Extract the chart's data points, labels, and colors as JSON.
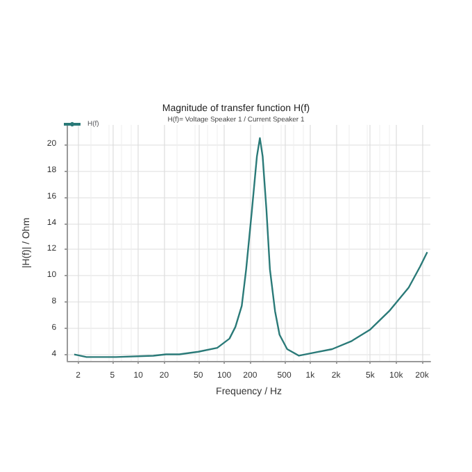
{
  "chart_data": {
    "type": "line",
    "title": "Magnitude of transfer function H(f)",
    "subtitle": "H(f)= Voltage Speaker 1 / Current Speaker 1",
    "xlabel": "Frequency / Hz",
    "ylabel": "|H(f)| / Ohm",
    "x": [
      1.8,
      2.5,
      5.5,
      15,
      21,
      30,
      50,
      83,
      115,
      135,
      160,
      180,
      210,
      240,
      260,
      280,
      310,
      340,
      390,
      440,
      540,
      740,
      1050,
      1800,
      3000,
      5000,
      8300,
      14000,
      19000,
      23000
    ],
    "series": [
      {
        "name": "H(f)",
        "color": "#2a7a78",
        "values": [
          4.0,
          3.8,
          3.8,
          3.9,
          4.0,
          4.0,
          4.2,
          4.5,
          5.2,
          6.1,
          7.7,
          10.5,
          15,
          19.1,
          20.5,
          19.1,
          15,
          10.5,
          7.3,
          5.5,
          4.4,
          3.9,
          4.1,
          4.4,
          5.0,
          5.9,
          7.3,
          9.1,
          10.7,
          11.8
        ]
      }
    ],
    "log": "x",
    "xlim": [
      1.5,
      25000
    ],
    "xticks": [
      2,
      5,
      10,
      20,
      50,
      100,
      200,
      500,
      {
        "value": 1000,
        "label": "1k"
      },
      {
        "value": 2000,
        "label": "2k"
      },
      {
        "value": 5000,
        "label": "5k"
      },
      {
        "value": 10000,
        "label": "10k"
      },
      {
        "value": 20000,
        "label": "20k"
      }
    ],
    "ylim": [
      3.5,
      21.5
    ],
    "yticks": [
      4,
      6,
      8,
      10,
      12,
      14,
      16,
      18,
      20
    ],
    "grid": true,
    "legend": "top left",
    "marker": "none",
    "line_style": "solid"
  }
}
